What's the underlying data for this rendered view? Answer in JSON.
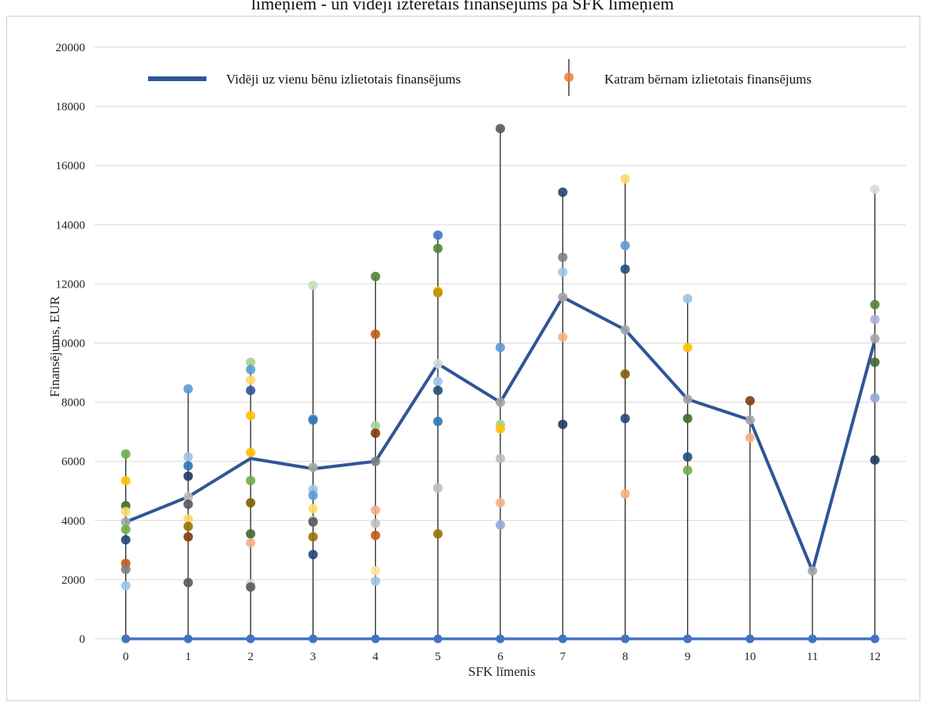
{
  "chart_data": {
    "type": "scatter",
    "title": "līmeņiem - un vidēji iztērētais finansējums pa SFK līmeņiem",
    "xlabel": "SFK līmenis",
    "ylabel": "Finansējums, EUR",
    "categories": [
      "0",
      "1",
      "2",
      "3",
      "4",
      "5",
      "6",
      "7",
      "8",
      "9",
      "10",
      "11",
      "12"
    ],
    "ylim": [
      0,
      20000
    ],
    "yticks": [
      0,
      2000,
      4000,
      6000,
      8000,
      10000,
      12000,
      14000,
      16000,
      18000,
      20000
    ],
    "grid": true,
    "legend_position": "top",
    "series": [
      {
        "name": "Vidēji uz vienu bēnu izlietotais finansējums",
        "kind": "line",
        "color": "#2f5597",
        "values": [
          3950,
          4800,
          6100,
          5750,
          6000,
          9300,
          8000,
          11550,
          10450,
          8100,
          7400,
          2300,
          10100
        ]
      },
      {
        "name": "Katram bērnam izlietotais finansējums",
        "kind": "scatter",
        "points": [
          {
            "x": 0,
            "y": 6250,
            "color": "#70ad47"
          },
          {
            "x": 0,
            "y": 5350,
            "color": "#ffc000"
          },
          {
            "x": 0,
            "y": 4500,
            "color": "#43682b"
          },
          {
            "x": 0,
            "y": 4300,
            "color": "#ffd966"
          },
          {
            "x": 0,
            "y": 3950,
            "color": "#a5a5a5"
          },
          {
            "x": 0,
            "y": 3700,
            "color": "#70ad47"
          },
          {
            "x": 0,
            "y": 3350,
            "color": "#264478"
          },
          {
            "x": 0,
            "y": 2550,
            "color": "#c55a11"
          },
          {
            "x": 0,
            "y": 2350,
            "color": "#7f7f7f"
          },
          {
            "x": 0,
            "y": 1800,
            "color": "#9dc3e6"
          },
          {
            "x": 1,
            "y": 8450,
            "color": "#5b9bd5"
          },
          {
            "x": 1,
            "y": 6150,
            "color": "#9dc3e6"
          },
          {
            "x": 1,
            "y": 5850,
            "color": "#2e75b6"
          },
          {
            "x": 1,
            "y": 5500,
            "color": "#1f3864"
          },
          {
            "x": 1,
            "y": 4800,
            "color": "#bfbfbf"
          },
          {
            "x": 1,
            "y": 4550,
            "color": "#595959"
          },
          {
            "x": 1,
            "y": 4050,
            "color": "#ffd966"
          },
          {
            "x": 1,
            "y": 3800,
            "color": "#997300"
          },
          {
            "x": 1,
            "y": 3450,
            "color": "#843c0c"
          },
          {
            "x": 1,
            "y": 1900,
            "color": "#595959"
          },
          {
            "x": 2,
            "y": 9350,
            "color": "#a9d18e"
          },
          {
            "x": 2,
            "y": 9100,
            "color": "#5b9bd5"
          },
          {
            "x": 2,
            "y": 8750,
            "color": "#ffd966"
          },
          {
            "x": 2,
            "y": 8400,
            "color": "#2f5597"
          },
          {
            "x": 2,
            "y": 7550,
            "color": "#ffc000"
          },
          {
            "x": 2,
            "y": 6300,
            "color": "#ffc000"
          },
          {
            "x": 2,
            "y": 5350,
            "color": "#70ad47"
          },
          {
            "x": 2,
            "y": 4600,
            "color": "#806000"
          },
          {
            "x": 2,
            "y": 3550,
            "color": "#43682b"
          },
          {
            "x": 2,
            "y": 3250,
            "color": "#f4b183"
          },
          {
            "x": 2,
            "y": 1850,
            "color": "#d9d9d9"
          },
          {
            "x": 2,
            "y": 1750,
            "color": "#595959"
          },
          {
            "x": 3,
            "y": 11950,
            "color": "#c5e0b4"
          },
          {
            "x": 3,
            "y": 7450,
            "color": "#9dc3e6"
          },
          {
            "x": 3,
            "y": 7400,
            "color": "#2e75b6"
          },
          {
            "x": 3,
            "y": 5800,
            "color": "#a5a5a5"
          },
          {
            "x": 3,
            "y": 5050,
            "color": "#9dc3e6"
          },
          {
            "x": 3,
            "y": 4850,
            "color": "#5b9bd5"
          },
          {
            "x": 3,
            "y": 4400,
            "color": "#ffd966"
          },
          {
            "x": 3,
            "y": 4000,
            "color": "#bfbfbf"
          },
          {
            "x": 3,
            "y": 3950,
            "color": "#595959"
          },
          {
            "x": 3,
            "y": 3450,
            "color": "#997300"
          },
          {
            "x": 3,
            "y": 2850,
            "color": "#264478"
          },
          {
            "x": 4,
            "y": 12250,
            "color": "#548235"
          },
          {
            "x": 4,
            "y": 10300,
            "color": "#c55a11"
          },
          {
            "x": 4,
            "y": 7200,
            "color": "#a9d18e"
          },
          {
            "x": 4,
            "y": 6950,
            "color": "#843c0c"
          },
          {
            "x": 4,
            "y": 6000,
            "color": "#7f7f7f"
          },
          {
            "x": 4,
            "y": 4350,
            "color": "#f4b183"
          },
          {
            "x": 4,
            "y": 3900,
            "color": "#bfbfbf"
          },
          {
            "x": 4,
            "y": 3500,
            "color": "#c55a11"
          },
          {
            "x": 4,
            "y": 2300,
            "color": "#ffe699"
          },
          {
            "x": 4,
            "y": 1950,
            "color": "#9dc3e6"
          },
          {
            "x": 5,
            "y": 13650,
            "color": "#4472c4"
          },
          {
            "x": 5,
            "y": 13200,
            "color": "#548235"
          },
          {
            "x": 5,
            "y": 11750,
            "color": "#ffc000"
          },
          {
            "x": 5,
            "y": 11700,
            "color": "#bf9000"
          },
          {
            "x": 5,
            "y": 9300,
            "color": "#d9d9d9"
          },
          {
            "x": 5,
            "y": 8700,
            "color": "#9dc3e6"
          },
          {
            "x": 5,
            "y": 8400,
            "color": "#1f4e79"
          },
          {
            "x": 5,
            "y": 7350,
            "color": "#2e75b6"
          },
          {
            "x": 5,
            "y": 5100,
            "color": "#bfbfbf"
          },
          {
            "x": 5,
            "y": 3550,
            "color": "#997300"
          },
          {
            "x": 6,
            "y": 17250,
            "color": "#595959"
          },
          {
            "x": 6,
            "y": 9850,
            "color": "#5b9bd5"
          },
          {
            "x": 6,
            "y": 8000,
            "color": "#a5a5a5"
          },
          {
            "x": 6,
            "y": 7250,
            "color": "#a9d18e"
          },
          {
            "x": 6,
            "y": 7100,
            "color": "#ffc000"
          },
          {
            "x": 6,
            "y": 6100,
            "color": "#bfbfbf"
          },
          {
            "x": 6,
            "y": 4600,
            "color": "#f4b183"
          },
          {
            "x": 6,
            "y": 3850,
            "color": "#8faadc"
          },
          {
            "x": 7,
            "y": 15100,
            "color": "#264478"
          },
          {
            "x": 7,
            "y": 12900,
            "color": "#7f7f7f"
          },
          {
            "x": 7,
            "y": 12400,
            "color": "#9dc3e6"
          },
          {
            "x": 7,
            "y": 11550,
            "color": "#a5a5a5"
          },
          {
            "x": 7,
            "y": 10200,
            "color": "#f4b183"
          },
          {
            "x": 7,
            "y": 7250,
            "color": "#203864"
          },
          {
            "x": 8,
            "y": 15550,
            "color": "#ffd966"
          },
          {
            "x": 8,
            "y": 13300,
            "color": "#5b9bd5"
          },
          {
            "x": 8,
            "y": 12500,
            "color": "#1f4e79"
          },
          {
            "x": 8,
            "y": 10450,
            "color": "#a5a5a5"
          },
          {
            "x": 8,
            "y": 8950,
            "color": "#806000"
          },
          {
            "x": 8,
            "y": 7450,
            "color": "#264478"
          },
          {
            "x": 8,
            "y": 4900,
            "color": "#f4b183"
          },
          {
            "x": 9,
            "y": 11500,
            "color": "#9dc3e6"
          },
          {
            "x": 9,
            "y": 9850,
            "color": "#ffc000"
          },
          {
            "x": 9,
            "y": 8100,
            "color": "#a5a5a5"
          },
          {
            "x": 9,
            "y": 7450,
            "color": "#43682b"
          },
          {
            "x": 9,
            "y": 6150,
            "color": "#1f4e79"
          },
          {
            "x": 9,
            "y": 5700,
            "color": "#70ad47"
          },
          {
            "x": 10,
            "y": 8050,
            "color": "#843c0c"
          },
          {
            "x": 10,
            "y": 7400,
            "color": "#a5a5a5"
          },
          {
            "x": 10,
            "y": 6800,
            "color": "#f4b183"
          },
          {
            "x": 11,
            "y": 2300,
            "color": "#a5a5a5"
          },
          {
            "x": 12,
            "y": 15200,
            "color": "#d9d9d9"
          },
          {
            "x": 12,
            "y": 11300,
            "color": "#548235"
          },
          {
            "x": 12,
            "y": 10800,
            "color": "#a9b4d5"
          },
          {
            "x": 12,
            "y": 10150,
            "color": "#a5a5a5"
          },
          {
            "x": 12,
            "y": 9350,
            "color": "#43682b"
          },
          {
            "x": 12,
            "y": 8150,
            "color": "#8faadc"
          },
          {
            "x": 12,
            "y": 6050,
            "color": "#1f3864"
          }
        ]
      }
    ],
    "baseline": {
      "color": "#4472c4",
      "values": [
        0,
        0,
        0,
        0,
        0,
        0,
        0,
        0,
        0,
        0,
        0,
        0,
        0
      ]
    }
  }
}
